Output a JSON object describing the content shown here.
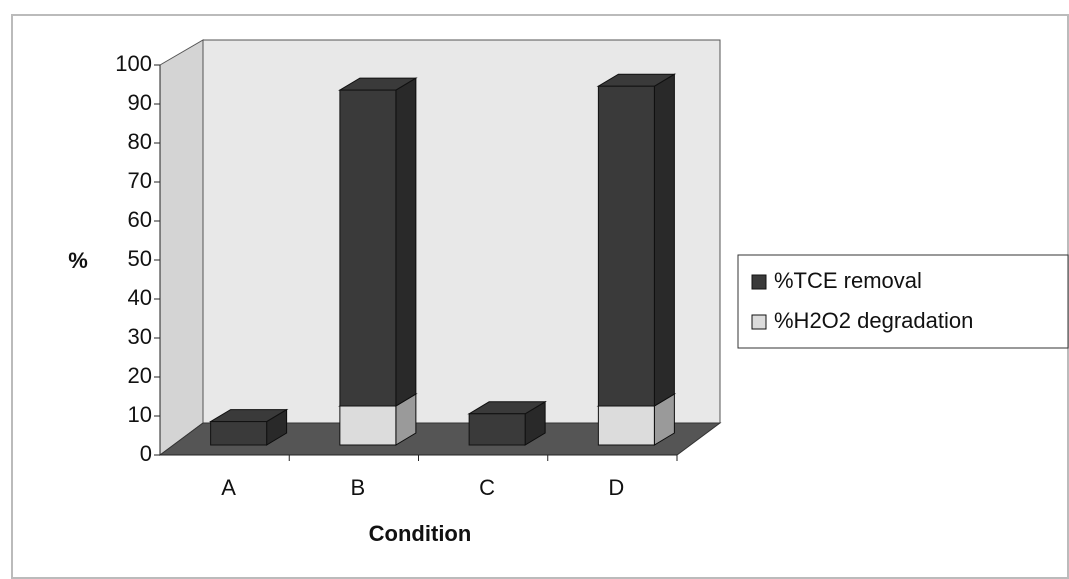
{
  "chart_data": {
    "type": "bar3d_stacked",
    "ylabel": "%",
    "xlabel": "Condition",
    "categories": [
      "A",
      "B",
      "C",
      "D"
    ],
    "series": [
      {
        "name": "%TCE removal",
        "color": "#3a3a3a",
        "values": [
          6,
          81,
          8,
          82
        ]
      },
      {
        "name": "%H2O2 degradation",
        "color": "#dcdcdc",
        "values": [
          0,
          10,
          0,
          10
        ]
      }
    ],
    "ylim": [
      0,
      100
    ],
    "yticks": [
      0,
      10,
      20,
      30,
      40,
      50,
      60,
      70,
      80,
      90,
      100
    ],
    "grid": false,
    "legend": "right"
  }
}
